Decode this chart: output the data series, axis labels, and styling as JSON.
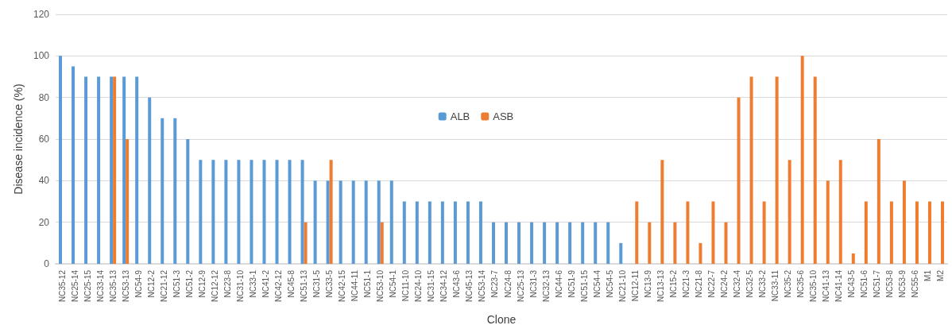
{
  "chart_data": {
    "type": "bar",
    "xlabel": "Clone",
    "ylabel": "Disease incidence (%)",
    "categories": [
      "NC35-12",
      "NC25-14",
      "NC25-15",
      "NC33-14",
      "NC35-13",
      "NC53-13",
      "NC54-9",
      "NC12-2",
      "NC21-12",
      "NC51-3",
      "NC51-2",
      "NC12-9",
      "NC12-12",
      "NC23-8",
      "NC31-10",
      "NC33-1",
      "NC41-2",
      "NC42-12",
      "NC45-8",
      "NC51-13",
      "NC31-5",
      "NC33-5",
      "NC42-15",
      "NC44-11",
      "NC51-1",
      "NC53-10",
      "NC54-1",
      "NC11-10",
      "NC24-10",
      "NC31-15",
      "NC34-12",
      "NC43-6",
      "NC45-13",
      "NC53-14",
      "NC23-7",
      "NC24-8",
      "NC25-13",
      "NC31-3",
      "NC32-13",
      "NC44-6",
      "NC51-9",
      "NC51-15",
      "NC54-4",
      "NC54-5",
      "NC21-10",
      "NC12-11",
      "NC13-9",
      "NC13-13",
      "NC15-2",
      "NC21-3",
      "NC21-8",
      "NC22-7",
      "NC24-2",
      "NC32-4",
      "NC32-5",
      "NC33-2",
      "NC33-11",
      "NC35-2",
      "NC35-6",
      "NC35-10",
      "NC41-13",
      "NC41-14",
      "NC43-5",
      "NC51-6",
      "NC51-7",
      "NC53-8",
      "NC53-9",
      "NC55-6",
      "M1",
      "M2"
    ],
    "series": [
      {
        "name": "ALB",
        "color": "#5b9bd5",
        "values": [
          100,
          95,
          90,
          90,
          90,
          90,
          90,
          80,
          70,
          70,
          60,
          50,
          50,
          50,
          50,
          50,
          50,
          50,
          50,
          50,
          40,
          40,
          40,
          40,
          40,
          40,
          40,
          30,
          30,
          30,
          30,
          30,
          30,
          30,
          20,
          20,
          20,
          20,
          20,
          20,
          20,
          20,
          20,
          20,
          10,
          null,
          null,
          null,
          null,
          null,
          null,
          null,
          null,
          null,
          null,
          null,
          null,
          null,
          null,
          null,
          null,
          null,
          null,
          null,
          null,
          null,
          null,
          null,
          null,
          null
        ]
      },
      {
        "name": "ASB",
        "color": "#ed7d31",
        "values": [
          null,
          null,
          null,
          null,
          90,
          60,
          null,
          null,
          null,
          null,
          null,
          null,
          null,
          null,
          null,
          null,
          null,
          null,
          null,
          20,
          null,
          50,
          null,
          null,
          null,
          20,
          null,
          null,
          null,
          null,
          null,
          null,
          null,
          null,
          null,
          null,
          null,
          null,
          null,
          null,
          null,
          null,
          null,
          null,
          null,
          30,
          20,
          50,
          20,
          30,
          10,
          30,
          20,
          80,
          90,
          30,
          90,
          50,
          100,
          90,
          40,
          50,
          5,
          30,
          60,
          30,
          40,
          30,
          30,
          30
        ]
      }
    ],
    "ylim": [
      0,
      120
    ],
    "yticks": [
      0,
      20,
      40,
      60,
      80,
      100,
      120
    ],
    "grid": "y",
    "legend": "center"
  }
}
